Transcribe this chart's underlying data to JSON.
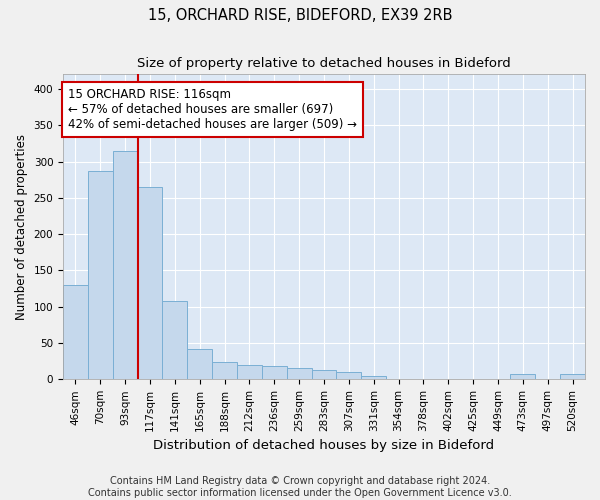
{
  "title": "15, ORCHARD RISE, BIDEFORD, EX39 2RB",
  "subtitle": "Size of property relative to detached houses in Bideford",
  "xlabel": "Distribution of detached houses by size in Bideford",
  "ylabel": "Number of detached properties",
  "footer_line1": "Contains HM Land Registry data © Crown copyright and database right 2024.",
  "footer_line2": "Contains public sector information licensed under the Open Government Licence v3.0.",
  "bins": [
    "46sqm",
    "70sqm",
    "93sqm",
    "117sqm",
    "141sqm",
    "165sqm",
    "188sqm",
    "212sqm",
    "236sqm",
    "259sqm",
    "283sqm",
    "307sqm",
    "331sqm",
    "354sqm",
    "378sqm",
    "402sqm",
    "425sqm",
    "449sqm",
    "473sqm",
    "497sqm",
    "520sqm"
  ],
  "bar_values": [
    130,
    287,
    314,
    265,
    108,
    42,
    24,
    20,
    18,
    16,
    13,
    10,
    5,
    0,
    0,
    0,
    0,
    0,
    7,
    0,
    7
  ],
  "bar_color": "#c5d8ec",
  "bar_edge_color": "#7aafd4",
  "background_color": "#dde8f5",
  "grid_color": "#ffffff",
  "property_line_label": "15 ORCHARD RISE: 116sqm",
  "annotation_line1": "← 57% of detached houses are smaller (697)",
  "annotation_line2": "42% of semi-detached houses are larger (509) →",
  "annotation_box_color": "#ffffff",
  "annotation_box_edge_color": "#cc0000",
  "red_line_color": "#cc0000",
  "ylim": [
    0,
    420
  ],
  "yticks": [
    0,
    50,
    100,
    150,
    200,
    250,
    300,
    350,
    400
  ],
  "title_fontsize": 10.5,
  "subtitle_fontsize": 9.5,
  "xlabel_fontsize": 9.5,
  "ylabel_fontsize": 8.5,
  "tick_fontsize": 7.5,
  "annotation_fontsize": 8.5,
  "footer_fontsize": 7
}
